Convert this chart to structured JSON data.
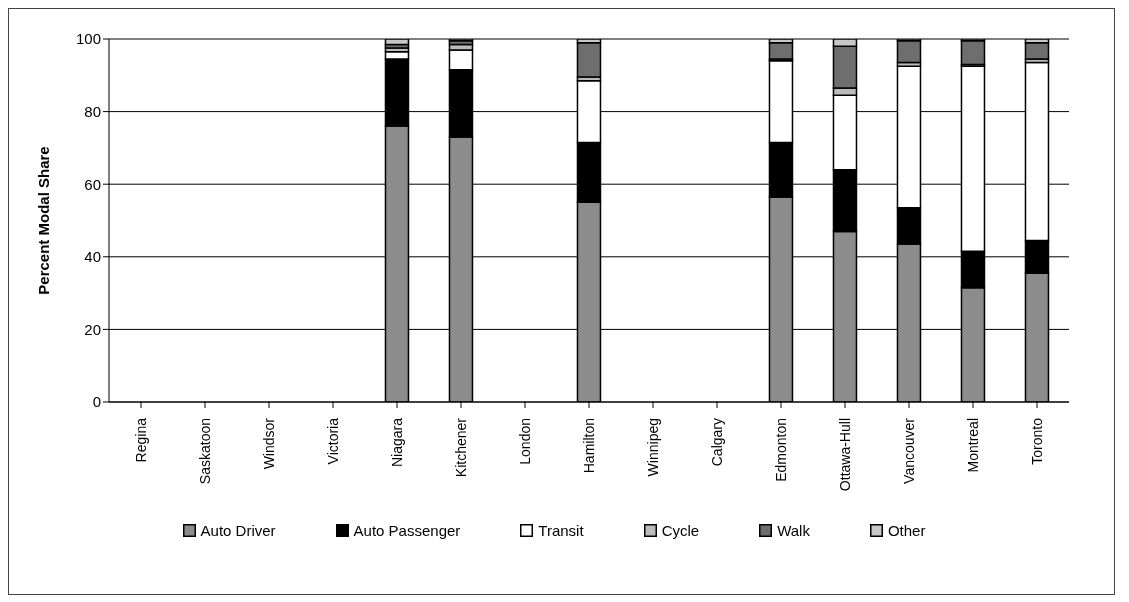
{
  "chart_data": {
    "type": "bar",
    "stacked": true,
    "ylabel": "Percent Modal Share",
    "categories": [
      "Regina",
      "Saskatoon",
      "Windsor",
      "Victoria",
      "Niagara",
      "Kitchener",
      "London",
      "Hamilton",
      "Winnipeg",
      "Calgary",
      "Edmonton",
      "Ottawa-Hull",
      "Vancouver",
      "Montreal",
      "Toronto"
    ],
    "series": [
      {
        "name": "Auto Driver",
        "color": "#8c8c8c",
        "values": [
          null,
          null,
          null,
          null,
          76,
          73,
          null,
          55,
          null,
          null,
          56.5,
          47,
          43.5,
          31.5,
          35.5
        ]
      },
      {
        "name": "Auto Passenger",
        "color": "#000000",
        "values": [
          null,
          null,
          null,
          null,
          18.5,
          18.5,
          null,
          16.5,
          null,
          null,
          15,
          17,
          10,
          10,
          9
        ]
      },
      {
        "name": "Transit",
        "color": "#ffffff",
        "values": [
          null,
          null,
          null,
          null,
          2,
          5.5,
          null,
          17,
          null,
          null,
          22.5,
          20.5,
          39,
          51,
          49
        ]
      },
      {
        "name": "Cycle",
        "color": "#bbbbbb",
        "values": [
          null,
          null,
          null,
          null,
          1,
          1.5,
          null,
          1,
          null,
          null,
          0.5,
          2,
          1,
          0.5,
          1
        ]
      },
      {
        "name": "Walk",
        "color": "#6e6e6e",
        "values": [
          null,
          null,
          null,
          null,
          1,
          1,
          null,
          9.5,
          null,
          null,
          4.5,
          11.5,
          6,
          6.5,
          4.5
        ]
      },
      {
        "name": "Other",
        "color": "#c8c8c8",
        "values": [
          null,
          null,
          null,
          null,
          1.5,
          0.5,
          null,
          1,
          null,
          null,
          1,
          2,
          0.5,
          0.5,
          1
        ]
      }
    ],
    "ylim": [
      0,
      100
    ],
    "yticks": [
      0,
      20,
      40,
      60,
      80,
      100
    ],
    "grid": "y",
    "legend": "bottom"
  }
}
